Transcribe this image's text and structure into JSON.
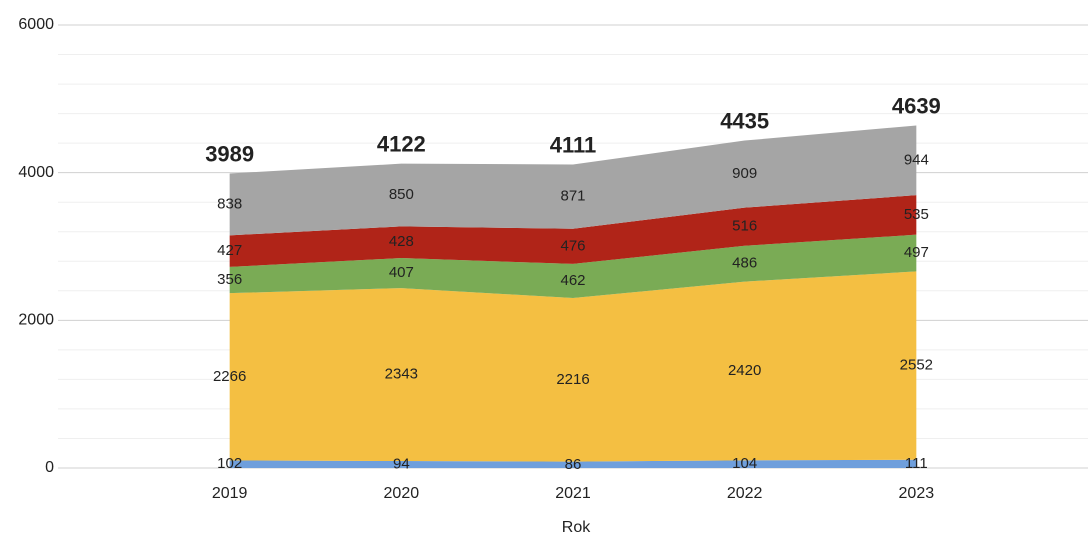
{
  "chart_data": {
    "type": "stacked_area",
    "x_label": "Rok",
    "categories": [
      "2019",
      "2020",
      "2021",
      "2022",
      "2023"
    ],
    "series": [
      {
        "color": "#6f9fdc",
        "values": [
          102,
          94,
          86,
          104,
          111
        ]
      },
      {
        "color": "#f4bf42",
        "values": [
          2266,
          2343,
          2216,
          2420,
          2552
        ]
      },
      {
        "color": "#7aab55",
        "values": [
          356,
          407,
          462,
          486,
          497
        ]
      },
      {
        "color": "#b02418",
        "values": [
          427,
          428,
          476,
          516,
          535
        ]
      },
      {
        "color": "#a5a5a5",
        "values": [
          838,
          850,
          871,
          909,
          944
        ]
      }
    ],
    "totals": [
      3989,
      4122,
      4111,
      4435,
      4639
    ],
    "ylim": [
      0,
      6000
    ],
    "yticks": [
      0,
      2000,
      4000,
      6000
    ],
    "minor_yticks": [
      400,
      800,
      1200,
      1600,
      2400,
      2800,
      3200,
      3600,
      4400,
      4800,
      5200,
      5600
    ],
    "grid": true
  }
}
